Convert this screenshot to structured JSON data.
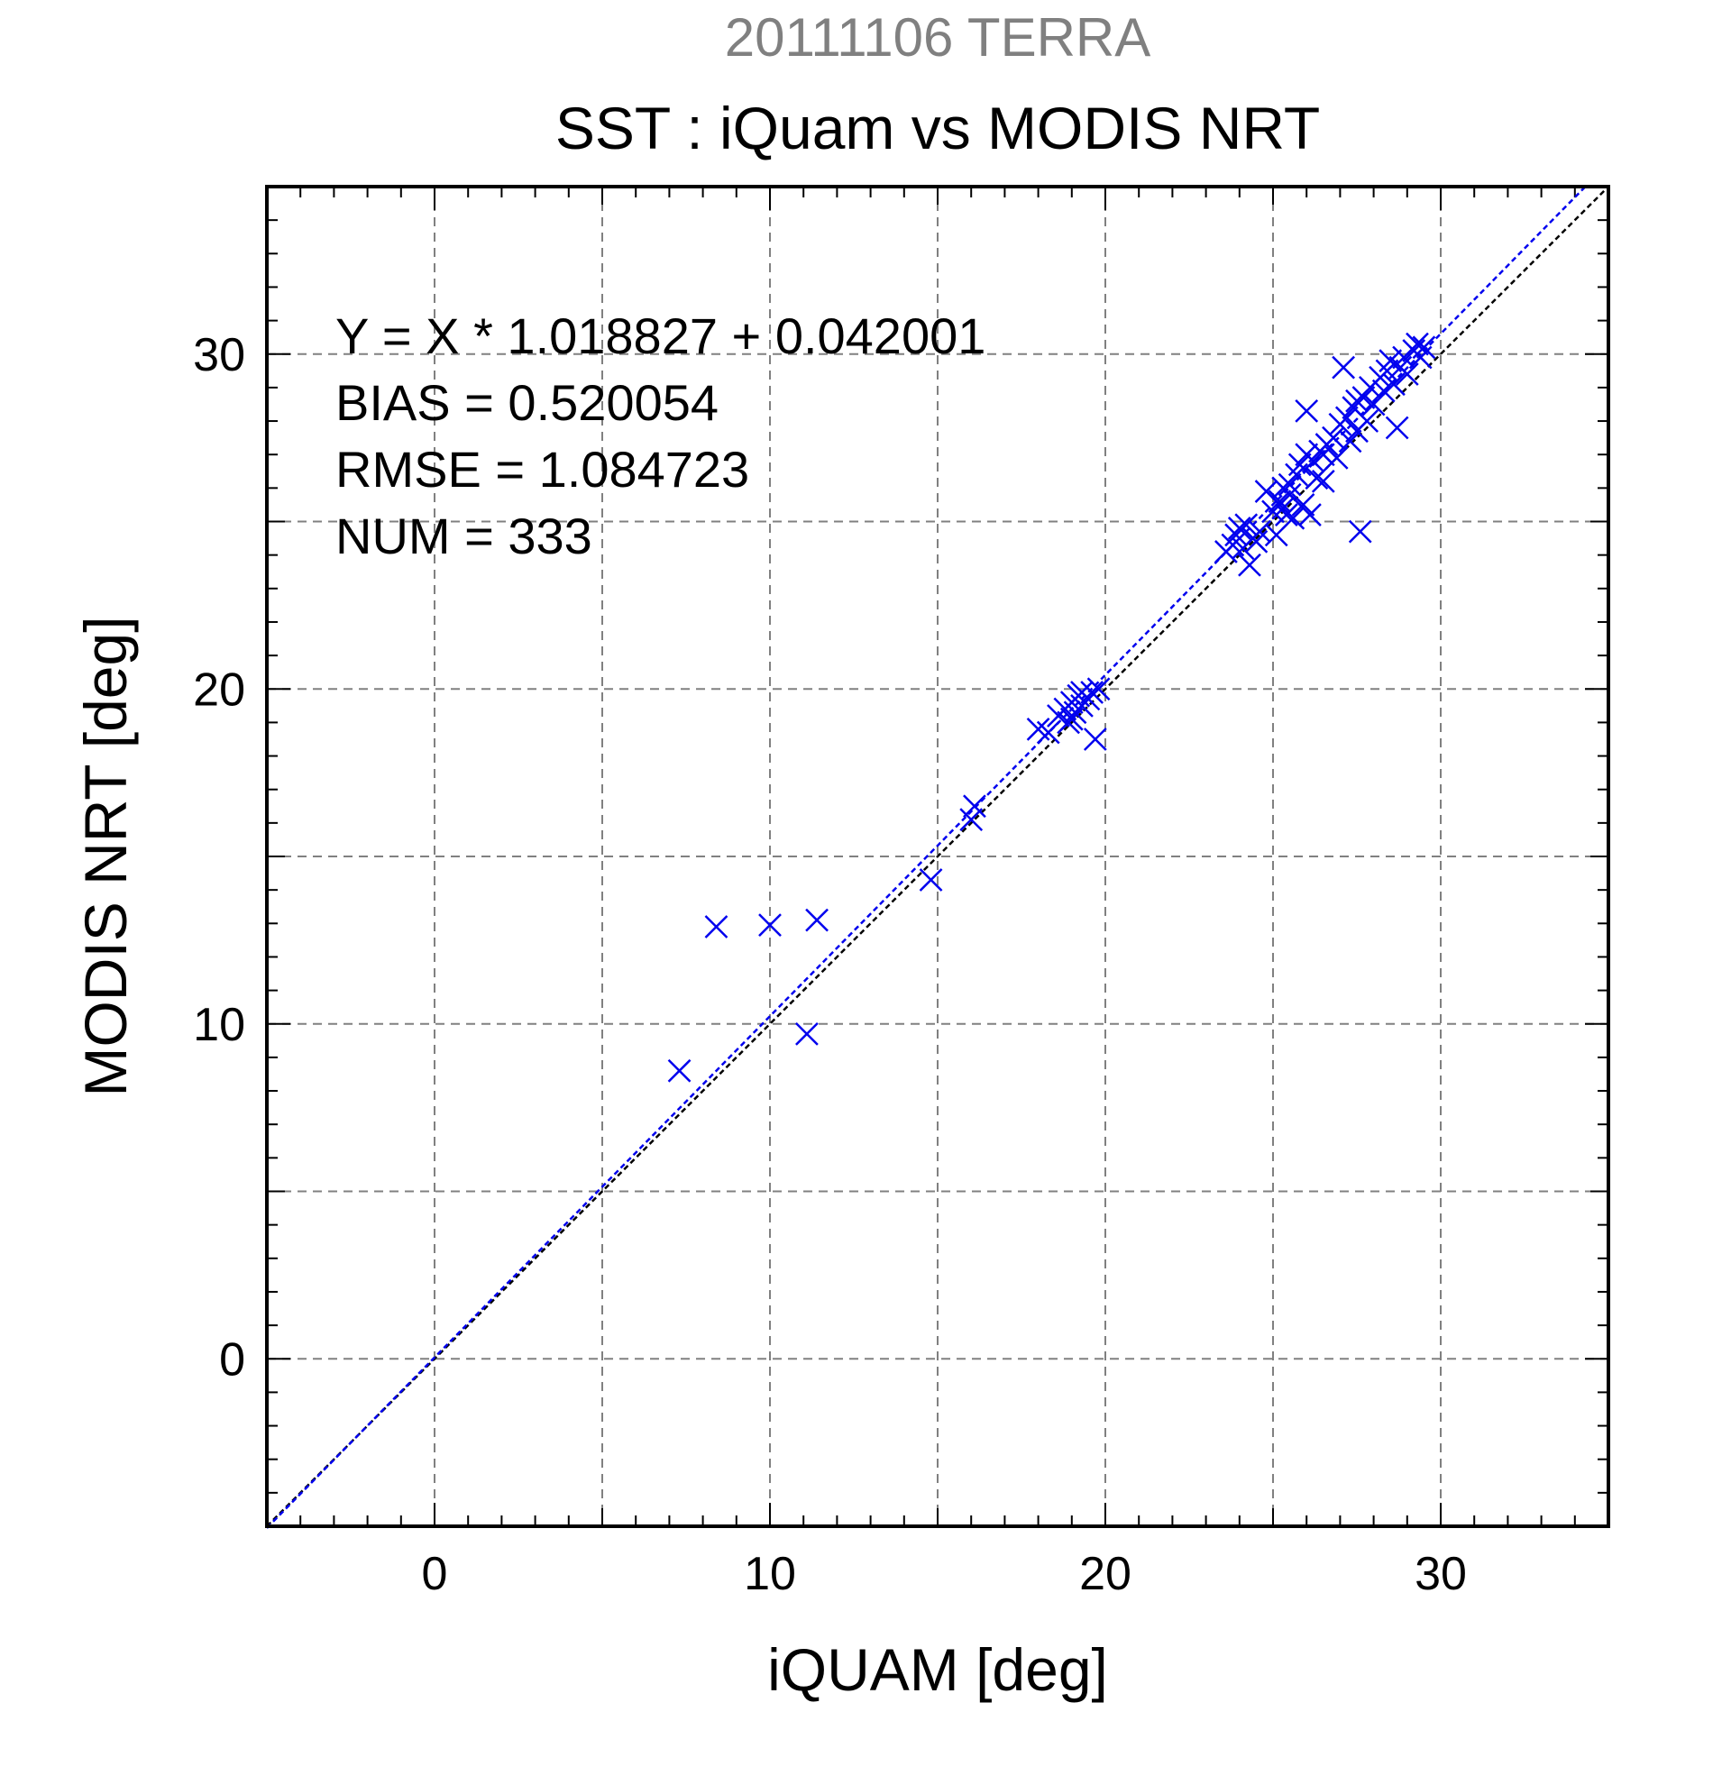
{
  "chart_data": {
    "type": "scatter",
    "title": "SST : iQuam vs MODIS NRT",
    "subtitle": "20111106 TERRA",
    "xlabel": "iQUAM [deg]",
    "ylabel": "MODIS NRT [deg]",
    "xlim": [
      -5,
      35
    ],
    "ylim": [
      -5,
      35
    ],
    "xticks": [
      "0",
      "10",
      "20",
      "30"
    ],
    "yticks": [
      "0",
      "10",
      "20",
      "30"
    ],
    "grid": true,
    "stats": [
      "Y = X * 1.018827 + 0.042001",
      "BIAS = 0.520054",
      "RMSE = 1.084723",
      "NUM = 333"
    ],
    "fit": {
      "slope": 1.018827,
      "intercept": 0.042001
    },
    "colors": {
      "points": "#0000ee",
      "fit_line": "#0000ee",
      "identity_line": "#000000",
      "subtitle": "#808080",
      "grid": "#808080"
    },
    "series": [
      {
        "marker": "x",
        "points": [
          [
            7.3,
            8.6
          ],
          [
            8.4,
            12.9
          ],
          [
            10.0,
            12.95
          ],
          [
            11.1,
            9.7
          ],
          [
            11.4,
            13.1
          ],
          [
            14.8,
            14.3
          ],
          [
            16.0,
            16.1
          ],
          [
            16.1,
            16.5
          ],
          [
            18.0,
            18.8
          ],
          [
            18.3,
            18.7
          ],
          [
            18.6,
            19.2
          ],
          [
            18.8,
            19.4
          ],
          [
            18.9,
            19.0
          ],
          [
            19.0,
            19.6
          ],
          [
            19.1,
            19.3
          ],
          [
            19.2,
            19.8
          ],
          [
            19.3,
            19.5
          ],
          [
            19.5,
            19.7
          ],
          [
            19.6,
            19.9
          ],
          [
            19.7,
            18.5
          ],
          [
            19.8,
            20.0
          ],
          [
            19.0,
            19.1
          ],
          [
            19.3,
            19.9
          ],
          [
            23.6,
            24.1
          ],
          [
            23.8,
            24.3
          ],
          [
            23.9,
            24.6
          ],
          [
            24.0,
            24.8
          ],
          [
            24.1,
            24.2
          ],
          [
            24.2,
            24.9
          ],
          [
            24.3,
            23.7
          ],
          [
            24.4,
            24.5
          ],
          [
            24.5,
            24.4
          ],
          [
            24.6,
            24.7
          ],
          [
            24.8,
            25.9
          ],
          [
            25.0,
            25.3
          ],
          [
            25.1,
            24.6
          ],
          [
            25.2,
            25.6
          ],
          [
            25.3,
            26.0
          ],
          [
            25.4,
            25.2
          ],
          [
            25.5,
            25.8
          ],
          [
            25.6,
            25.1
          ],
          [
            25.7,
            26.4
          ],
          [
            25.8,
            26.7
          ],
          [
            25.9,
            25.5
          ],
          [
            26.0,
            27.0
          ],
          [
            26.1,
            25.2
          ],
          [
            26.0,
            28.3
          ],
          [
            26.2,
            26.8
          ],
          [
            26.3,
            26.3
          ],
          [
            26.4,
            27.1
          ],
          [
            26.5,
            26.2
          ],
          [
            26.6,
            27.3
          ],
          [
            26.8,
            27.5
          ],
          [
            26.9,
            26.9
          ],
          [
            27.0,
            27.9
          ],
          [
            27.1,
            29.6
          ],
          [
            27.2,
            28.1
          ],
          [
            27.3,
            27.4
          ],
          [
            27.4,
            28.4
          ],
          [
            27.5,
            27.7
          ],
          [
            27.6,
            24.7
          ],
          [
            27.7,
            28.7
          ],
          [
            27.8,
            28.0
          ],
          [
            27.9,
            29.0
          ],
          [
            28.0,
            28.5
          ],
          [
            28.2,
            29.3
          ],
          [
            28.3,
            28.9
          ],
          [
            28.4,
            29.5
          ],
          [
            28.5,
            29.8
          ],
          [
            28.6,
            29.1
          ],
          [
            28.7,
            27.8
          ],
          [
            28.8,
            29.6
          ],
          [
            28.9,
            29.9
          ],
          [
            29.0,
            29.4
          ],
          [
            29.2,
            30.1
          ],
          [
            29.3,
            30.3
          ],
          [
            29.4,
            29.9
          ],
          [
            29.5,
            30.2
          ],
          [
            25.5,
            26.1
          ],
          [
            25.3,
            25.4
          ],
          [
            26.5,
            27.0
          ],
          [
            27.5,
            28.6
          ]
        ]
      }
    ]
  }
}
